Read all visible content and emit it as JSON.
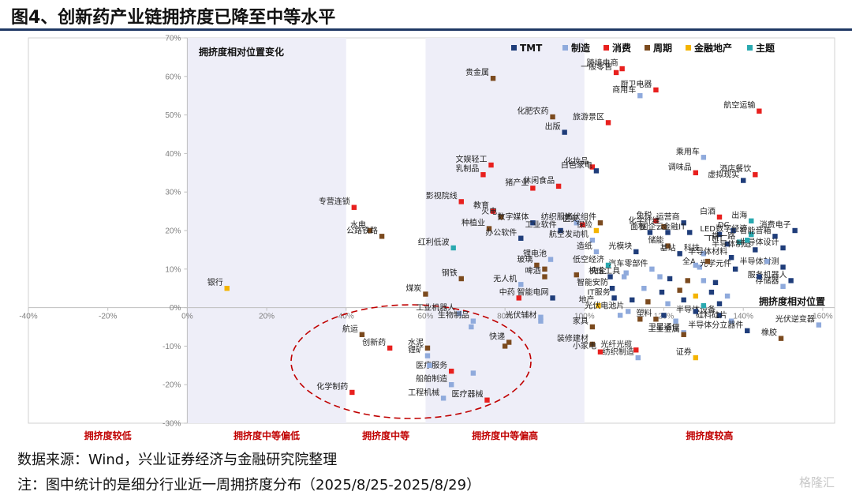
{
  "page": {
    "title": "图4、创新药产业链拥挤度已降至中等水平",
    "source": "数据来源：Wind，兴业证券经济与金融研究院整理",
    "note": "注：图中统计的是细分行业近一周拥挤度分布（2025/8/25-2025/8/29）",
    "logo": "格隆汇"
  },
  "chart_data": {
    "type": "scatter",
    "title": "拥挤度相对位置变化",
    "xlabel": "拥挤度相对位置",
    "ylabel": "",
    "xlim": [
      -40,
      163
    ],
    "ylim": [
      -30,
      70
    ],
    "xticks": [
      -40,
      -20,
      0,
      20,
      40,
      60,
      80,
      100,
      120,
      140,
      160
    ],
    "yticks": [
      -30,
      -20,
      -10,
      0,
      10,
      20,
      30,
      40,
      50,
      60,
      70
    ],
    "grid": false,
    "legend_position": "top-right",
    "zones": [
      {
        "label": "拥挤度较低",
        "range": [
          -40,
          0
        ],
        "shaded": false
      },
      {
        "label": "拥挤度中等偏低",
        "range": [
          0,
          40
        ],
        "shaded": true
      },
      {
        "label": "拥挤度中等",
        "range": [
          40,
          60
        ],
        "shaded": false
      },
      {
        "label": "拥挤度中等偏高",
        "range": [
          60,
          100
        ],
        "shaded": true
      },
      {
        "label": "拥挤度较高",
        "range": [
          100,
          163
        ],
        "shaded": false
      }
    ],
    "annotation": "dashed ellipse around the innovative-drug chain",
    "categories": [
      {
        "key": "tmt",
        "name": "TMT",
        "color": "#1f3d7a"
      },
      {
        "key": "mfg",
        "name": "制造",
        "color": "#8faadc"
      },
      {
        "key": "cons",
        "name": "消费",
        "color": "#e8201e"
      },
      {
        "key": "cyc",
        "name": "周期",
        "color": "#7b4a1e"
      },
      {
        "key": "fin",
        "name": "金融地产",
        "color": "#f4b400"
      },
      {
        "key": "theme",
        "name": "主题",
        "color": "#2aa9b0"
      }
    ],
    "points": [
      {
        "label": "贵金属",
        "c": "cyc",
        "x": 77,
        "y": 59.5
      },
      {
        "label": "跨境电商",
        "c": "cons",
        "x": 109.5,
        "y": 62
      },
      {
        "label": "一般零售",
        "c": "cons",
        "x": 108,
        "y": 61
      },
      {
        "label": "商用车",
        "c": "mfg",
        "x": 114,
        "y": 55
      },
      {
        "label": "厨卫电器",
        "c": "cons",
        "x": 118,
        "y": 56.5
      },
      {
        "label": "航空运输",
        "c": "cons",
        "x": 144,
        "y": 51
      },
      {
        "label": "化肥农药",
        "c": "cyc",
        "x": 92,
        "y": 49.5
      },
      {
        "label": "旅游景区",
        "c": "cons",
        "x": 106,
        "y": 48
      },
      {
        "label": "出版",
        "c": "tmt",
        "x": 95,
        "y": 45.5
      },
      {
        "label": "乘用车",
        "c": "mfg",
        "x": 130,
        "y": 39
      },
      {
        "label": "文娱轻工",
        "c": "cons",
        "x": 76.5,
        "y": 37
      },
      {
        "label": "化妆品",
        "c": "cons",
        "x": 102,
        "y": 36.5
      },
      {
        "label": "白色家电",
        "c": "tmt",
        "x": 103,
        "y": 35.5
      },
      {
        "label": "调味品",
        "c": "cons",
        "x": 128,
        "y": 35
      },
      {
        "label": "虚拟现实",
        "c": "tmt",
        "x": 140,
        "y": 33
      },
      {
        "label": "酒店餐饮",
        "c": "cons",
        "x": 143,
        "y": 34.5
      },
      {
        "label": "乳制品",
        "c": "cons",
        "x": 74.5,
        "y": 34.5
      },
      {
        "label": "休闲食品",
        "c": "cons",
        "x": 93.5,
        "y": 31.5
      },
      {
        "label": "猪产业",
        "c": "cons",
        "x": 87,
        "y": 31
      },
      {
        "label": "影视院线",
        "c": "cons",
        "x": 69,
        "y": 27.5
      },
      {
        "label": "专营连锁",
        "c": "cons",
        "x": 42,
        "y": 26
      },
      {
        "label": "教育",
        "c": "cons",
        "x": 77,
        "y": 25
      },
      {
        "label": "火电",
        "c": "cyc",
        "x": 79,
        "y": 23.5
      },
      {
        "label": "数字媒体",
        "c": "tmt",
        "x": 87,
        "y": 22
      },
      {
        "label": "纺织服饰",
        "c": "mfg",
        "x": 98,
        "y": 22
      },
      {
        "label": "光伏组件",
        "c": "cyc",
        "x": 104,
        "y": 22
      },
      {
        "label": "免税",
        "c": "cons",
        "x": 118,
        "y": 22.5
      },
      {
        "label": "运营商",
        "c": "tmt",
        "x": 125,
        "y": 22
      },
      {
        "label": "白酒",
        "c": "cons",
        "x": 134,
        "y": 23.5
      },
      {
        "label": "出海",
        "c": "theme",
        "x": 142,
        "y": 22.5
      },
      {
        "label": "医美",
        "c": "cons",
        "x": 99.5,
        "y": 21.5
      },
      {
        "label": "化学纤维",
        "c": "cyc",
        "x": 120,
        "y": 21
      },
      {
        "label": "水电",
        "c": "cyc",
        "x": 46,
        "y": 20
      },
      {
        "label": "公路铁路",
        "c": "cyc",
        "x": 49,
        "y": 18.5
      },
      {
        "label": "种植业",
        "c": "cyc",
        "x": 76,
        "y": 20.5
      },
      {
        "label": "工业软件",
        "c": "tmt",
        "x": 94,
        "y": 20
      },
      {
        "label": "保险",
        "c": "fin",
        "x": 103,
        "y": 20
      },
      {
        "label": "面板",
        "c": "tmt",
        "x": 116.5,
        "y": 19.5
      },
      {
        "label": "国企云",
        "c": "tmt",
        "x": 121,
        "y": 19.5
      },
      {
        "label": "金融IT",
        "c": "tmt",
        "x": 126.5,
        "y": 19.5
      },
      {
        "label": "LED",
        "c": "tmt",
        "x": 134,
        "y": 19
      },
      {
        "label": "DC",
        "c": "tmt",
        "x": 137.5,
        "y": 20
      },
      {
        "label": "数字经济",
        "c": "theme",
        "x": 142,
        "y": 19
      },
      {
        "label": "消费电子",
        "c": "tmt",
        "x": 153,
        "y": 20
      },
      {
        "label": "智能音箱",
        "c": "tmt",
        "x": 148,
        "y": 18.5
      },
      {
        "label": "办公软件",
        "c": "tmt",
        "x": 84,
        "y": 18
      },
      {
        "label": "航空发动机",
        "c": "mfg",
        "x": 102,
        "y": 17.5
      },
      {
        "label": "一带一路",
        "c": "theme",
        "x": 139,
        "y": 17
      },
      {
        "label": "TMT",
        "c": "tmt",
        "x": 136,
        "y": 16.5
      },
      {
        "label": "红利低波",
        "c": "theme",
        "x": 67,
        "y": 15.5
      },
      {
        "label": "储能",
        "c": "cyc",
        "x": 121,
        "y": 16
      },
      {
        "label": "造纸",
        "c": "mfg",
        "x": 103,
        "y": 14.5
      },
      {
        "label": "光模块",
        "c": "tmt",
        "x": 113,
        "y": 14.5
      },
      {
        "label": "基站",
        "c": "tmt",
        "x": 124,
        "y": 14
      },
      {
        "label": "科技",
        "c": "mfg",
        "x": 130,
        "y": 14
      },
      {
        "label": "半导体制造",
        "c": "tmt",
        "x": 143,
        "y": 15
      },
      {
        "label": "半导体设计",
        "c": "tmt",
        "x": 150,
        "y": 15.5
      },
      {
        "label": "半导体材料",
        "c": "tmt",
        "x": 137,
        "y": 13
      },
      {
        "label": "锂电池",
        "c": "mfg",
        "x": 91.5,
        "y": 12.5
      },
      {
        "label": "玻璃",
        "c": "cyc",
        "x": 88,
        "y": 11
      },
      {
        "label": "低空经济",
        "c": "theme",
        "x": 106,
        "y": 11
      },
      {
        "label": "汽车零部件",
        "c": "mfg",
        "x": 117,
        "y": 10
      },
      {
        "label": "全A",
        "c": "mfg",
        "x": 129,
        "y": 10.5
      },
      {
        "label": "光学元件",
        "c": "tmt",
        "x": 138,
        "y": 10
      },
      {
        "label": "半导体封测",
        "c": "tmt",
        "x": 150,
        "y": 10.5
      },
      {
        "label": "钢铁",
        "c": "cyc",
        "x": 69,
        "y": 7.5
      },
      {
        "label": "啤酒",
        "c": "cyc",
        "x": 90,
        "y": 8
      },
      {
        "label": "央企",
        "c": "tmt",
        "x": 106.5,
        "y": 8
      },
      {
        "label": "机床工具",
        "c": "mfg",
        "x": 110,
        "y": 8
      },
      {
        "label": "服务机器人",
        "c": "tmt",
        "x": 152,
        "y": 7
      },
      {
        "label": "无人机",
        "c": "mfg",
        "x": 84,
        "y": 6
      },
      {
        "label": "智能安防",
        "c": "tmt",
        "x": 107,
        "y": 5
      },
      {
        "label": "存储器",
        "c": "mfg",
        "x": 150,
        "y": 5.5
      },
      {
        "label": "煤炭",
        "c": "cyc",
        "x": 60,
        "y": 3.5
      },
      {
        "label": "中药",
        "c": "cons",
        "x": 83.5,
        "y": 2.5
      },
      {
        "label": "智能电网",
        "c": "tmt",
        "x": 92,
        "y": 2.5
      },
      {
        "label": "IT服务",
        "c": "tmt",
        "x": 107.5,
        "y": 2.5
      },
      {
        "label": "地产",
        "c": "fin",
        "x": 103.5,
        "y": 0.5
      },
      {
        "label": "光伏电池片",
        "c": "mfg",
        "x": 111,
        "y": -1
      },
      {
        "label": "半导体设备",
        "c": "tmt",
        "x": 134,
        "y": -2
      },
      {
        "label": "硅料硅片",
        "c": "mfg",
        "x": 137,
        "y": -3.5
      },
      {
        "label": "光伏逆变器",
        "c": "mfg",
        "x": 159,
        "y": -4.5
      },
      {
        "label": "工业机器人",
        "c": "mfg",
        "x": 68.5,
        "y": -1.5
      },
      {
        "label": "生物制品",
        "c": "mfg",
        "x": 72,
        "y": -3.5
      },
      {
        "label": "航运",
        "c": "cyc",
        "x": 44,
        "y": -7
      },
      {
        "label": "光伏辅材",
        "c": "mfg",
        "x": 89,
        "y": -3.5
      },
      {
        "label": "家具",
        "c": "cyc",
        "x": 102,
        "y": -5
      },
      {
        "label": "塑料",
        "c": "cyc",
        "x": 118,
        "y": -3
      },
      {
        "label": "卫星通信",
        "c": "mfg",
        "x": 125,
        "y": -6.5
      },
      {
        "label": "半导体分立器件",
        "c": "tmt",
        "x": 141,
        "y": -6
      },
      {
        "label": "橡胶",
        "c": "cyc",
        "x": 149.5,
        "y": -8
      },
      {
        "label": "创新药",
        "c": "cons",
        "x": 51,
        "y": -10.5
      },
      {
        "label": "水泥",
        "c": "cyc",
        "x": 60.5,
        "y": -10.5
      },
      {
        "label": "快递",
        "c": "cyc",
        "x": 81,
        "y": -9
      },
      {
        "label": "装修建材",
        "c": "cyc",
        "x": 102,
        "y": -9.5
      },
      {
        "label": "工业金属",
        "c": "cyc",
        "x": 125,
        "y": -7
      },
      {
        "label": "小家电",
        "c": "cons",
        "x": 104,
        "y": -11.5
      },
      {
        "label": "光纤光缆",
        "c": "cons",
        "x": 113,
        "y": -11
      },
      {
        "label": "锂矿",
        "c": "mfg",
        "x": 60.5,
        "y": -12.5
      },
      {
        "label": "纺织制造",
        "c": "mfg",
        "x": 113.5,
        "y": -13
      },
      {
        "label": "证券",
        "c": "fin",
        "x": 128,
        "y": -13
      },
      {
        "label": "医疗服务",
        "c": "cons",
        "x": 66.5,
        "y": -16.5
      },
      {
        "label": "船舶制造",
        "c": "mfg",
        "x": 66.5,
        "y": -20
      },
      {
        "label": "化学制药",
        "c": "cons",
        "x": 41.5,
        "y": -22
      },
      {
        "label": "医疗器械",
        "c": "cons",
        "x": 75.5,
        "y": -24
      },
      {
        "label": "工程机械",
        "c": "mfg",
        "x": 64.5,
        "y": -23.5
      },
      {
        "label": "银行",
        "c": "fin",
        "x": 10,
        "y": 5
      },
      {
        "label": "",
        "c": "cyc",
        "x": 90,
        "y": 10
      },
      {
        "label": "",
        "c": "cyc",
        "x": 98,
        "y": 8.5
      },
      {
        "label": "",
        "c": "mfg",
        "x": 119,
        "y": 8
      },
      {
        "label": "",
        "c": "tmt",
        "x": 121.5,
        "y": 7.5
      },
      {
        "label": "",
        "c": "cyc",
        "x": 126,
        "y": 7
      },
      {
        "label": "",
        "c": "mfg",
        "x": 130,
        "y": 7
      },
      {
        "label": "",
        "c": "tmt",
        "x": 133,
        "y": 6.5
      },
      {
        "label": "",
        "c": "mfg",
        "x": 115,
        "y": 5
      },
      {
        "label": "",
        "c": "tmt",
        "x": 119.5,
        "y": 4
      },
      {
        "label": "",
        "c": "cyc",
        "x": 124,
        "y": 4.5
      },
      {
        "label": "",
        "c": "fin",
        "x": 128,
        "y": 3
      },
      {
        "label": "",
        "c": "tmt",
        "x": 132,
        "y": 4
      },
      {
        "label": "",
        "c": "mfg",
        "x": 136,
        "y": 3
      },
      {
        "label": "",
        "c": "tmt",
        "x": 112,
        "y": 2
      },
      {
        "label": "",
        "c": "cyc",
        "x": 116,
        "y": 1.5
      },
      {
        "label": "",
        "c": "mfg",
        "x": 121,
        "y": 1
      },
      {
        "label": "",
        "c": "tmt",
        "x": 125,
        "y": 2
      },
      {
        "label": "",
        "c": "theme",
        "x": 130,
        "y": 0.5
      },
      {
        "label": "",
        "c": "tmt",
        "x": 134,
        "y": 1
      },
      {
        "label": "",
        "c": "mfg",
        "x": 109,
        "y": -2
      },
      {
        "label": "",
        "c": "cyc",
        "x": 114,
        "y": -3
      },
      {
        "label": "",
        "c": "tmt",
        "x": 120,
        "y": -2
      },
      {
        "label": "",
        "c": "mfg",
        "x": 123,
        "y": -3.5
      },
      {
        "label": "",
        "c": "tmt",
        "x": 128,
        "y": -1
      },
      {
        "label": "",
        "c": "mfg",
        "x": 146,
        "y": 12
      },
      {
        "label": "",
        "c": "theme",
        "x": 141,
        "y": 17.5
      },
      {
        "label": "",
        "c": "cyc",
        "x": 131,
        "y": 12
      },
      {
        "label": "",
        "c": "mfg",
        "x": 110.5,
        "y": 9
      },
      {
        "label": "",
        "c": "mfg",
        "x": 128,
        "y": 11
      },
      {
        "label": "",
        "c": "tmt",
        "x": 144,
        "y": 8
      },
      {
        "label": "",
        "c": "mfg",
        "x": 71.5,
        "y": -5
      },
      {
        "label": "",
        "c": "mfg",
        "x": 89,
        "y": -2.5
      },
      {
        "label": "",
        "c": "cyc",
        "x": 80,
        "y": -10
      },
      {
        "label": "",
        "c": "mfg",
        "x": 61,
        "y": -15
      },
      {
        "label": "",
        "c": "mfg",
        "x": 72,
        "y": -17
      }
    ]
  }
}
